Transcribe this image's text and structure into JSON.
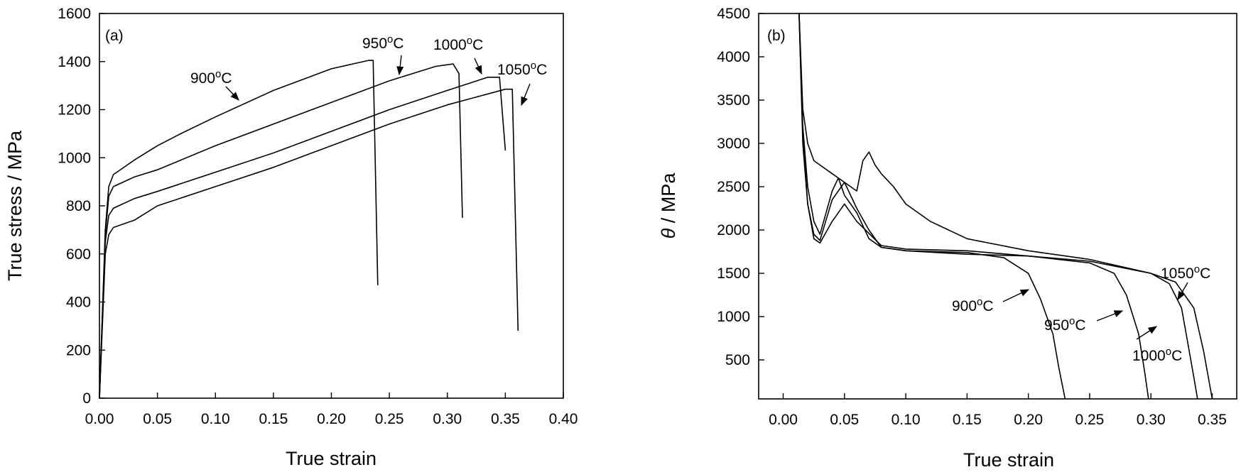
{
  "chart_data": [
    {
      "type": "line",
      "panel_label": "(a)",
      "xlabel": "True strain",
      "ylabel": "True stress / MPa",
      "xlim": [
        0.0,
        0.4
      ],
      "ylim": [
        0,
        1600
      ],
      "xticks": [
        "0.00",
        "0.05",
        "0.10",
        "0.15",
        "0.20",
        "0.25",
        "0.30",
        "0.35",
        "0.40"
      ],
      "yticks": [
        "0",
        "200",
        "400",
        "600",
        "800",
        "1000",
        "1200",
        "1400",
        "1600"
      ],
      "grid": false,
      "series": [
        {
          "name": "900°C",
          "x": [
            0.0,
            0.005,
            0.008,
            0.012,
            0.03,
            0.05,
            0.07,
            0.1,
            0.15,
            0.2,
            0.232,
            0.236,
            0.24
          ],
          "y": [
            0,
            700,
            880,
            930,
            990,
            1050,
            1100,
            1170,
            1280,
            1370,
            1405,
            1405,
            470
          ]
        },
        {
          "name": "950°C",
          "x": [
            0.0,
            0.005,
            0.008,
            0.012,
            0.03,
            0.05,
            0.1,
            0.15,
            0.2,
            0.25,
            0.29,
            0.305,
            0.31,
            0.313
          ],
          "y": [
            0,
            680,
            840,
            880,
            920,
            950,
            1050,
            1140,
            1230,
            1320,
            1380,
            1390,
            1350,
            750
          ]
        },
        {
          "name": "1000°C",
          "x": [
            0.0,
            0.005,
            0.008,
            0.012,
            0.03,
            0.05,
            0.1,
            0.15,
            0.2,
            0.25,
            0.3,
            0.335,
            0.345,
            0.35
          ],
          "y": [
            0,
            650,
            760,
            790,
            830,
            860,
            940,
            1020,
            1110,
            1200,
            1280,
            1335,
            1335,
            1030
          ]
        },
        {
          "name": "1050°C",
          "x": [
            0.0,
            0.005,
            0.008,
            0.012,
            0.03,
            0.05,
            0.1,
            0.15,
            0.2,
            0.25,
            0.3,
            0.35,
            0.356,
            0.361
          ],
          "y": [
            0,
            600,
            680,
            710,
            740,
            800,
            880,
            960,
            1050,
            1140,
            1220,
            1285,
            1285,
            280
          ]
        }
      ],
      "annotations": [
        {
          "text": "900",
          "unit": "°C"
        },
        {
          "text": "950",
          "unit": "°C"
        },
        {
          "text": "1000",
          "unit": "°C"
        },
        {
          "text": "1050",
          "unit": "°C"
        }
      ]
    },
    {
      "type": "line",
      "panel_label": "(b)",
      "xlabel": "True strain",
      "ylabel_symbol": "θ",
      "ylabel": "/ MPa",
      "xlim": [
        -0.02,
        0.37
      ],
      "ylim": [
        50,
        4500
      ],
      "xticks": [
        "0.00",
        "0.05",
        "0.10",
        "0.15",
        "0.20",
        "0.25",
        "0.30",
        "0.35"
      ],
      "yticks": [
        "500",
        "1000",
        "1500",
        "2000",
        "2500",
        "3000",
        "3500",
        "4000",
        "4500"
      ],
      "grid": false,
      "series": [
        {
          "name": "900°C",
          "x": [
            0.013,
            0.016,
            0.02,
            0.025,
            0.03,
            0.035,
            0.04,
            0.045,
            0.05,
            0.06,
            0.07,
            0.08,
            0.1,
            0.15,
            0.18,
            0.2,
            0.21,
            0.22,
            0.225,
            0.23
          ],
          "y": [
            4500,
            3200,
            2500,
            2100,
            1950,
            2200,
            2450,
            2600,
            2400,
            2200,
            1900,
            1800,
            1760,
            1740,
            1680,
            1500,
            1200,
            800,
            400,
            50
          ]
        },
        {
          "name": "950°C",
          "x": [
            0.013,
            0.016,
            0.02,
            0.025,
            0.03,
            0.04,
            0.05,
            0.06,
            0.07,
            0.08,
            0.1,
            0.15,
            0.2,
            0.25,
            0.27,
            0.28,
            0.29,
            0.295,
            0.298
          ],
          "y": [
            4500,
            3000,
            2300,
            1950,
            1880,
            2350,
            2550,
            2250,
            2000,
            1800,
            1760,
            1720,
            1700,
            1620,
            1500,
            1250,
            800,
            350,
            50
          ]
        },
        {
          "name": "1000°C",
          "x": [
            0.013,
            0.016,
            0.02,
            0.025,
            0.03,
            0.04,
            0.05,
            0.06,
            0.08,
            0.1,
            0.15,
            0.2,
            0.25,
            0.3,
            0.315,
            0.325,
            0.33,
            0.335,
            0.338
          ],
          "y": [
            4500,
            3100,
            2300,
            1900,
            1850,
            2100,
            2300,
            2100,
            1820,
            1780,
            1760,
            1700,
            1640,
            1500,
            1380,
            1100,
            700,
            300,
            50
          ]
        },
        {
          "name": "1050°C",
          "x": [
            0.013,
            0.016,
            0.02,
            0.025,
            0.03,
            0.04,
            0.05,
            0.06,
            0.065,
            0.07,
            0.075,
            0.08,
            0.09,
            0.1,
            0.12,
            0.15,
            0.2,
            0.25,
            0.3,
            0.32,
            0.335,
            0.343,
            0.35
          ],
          "y": [
            4500,
            3400,
            3000,
            2800,
            2750,
            2650,
            2550,
            2450,
            2800,
            2900,
            2750,
            2650,
            2500,
            2300,
            2100,
            1900,
            1760,
            1660,
            1500,
            1400,
            1100,
            600,
            50
          ]
        }
      ],
      "annotations": [
        {
          "text": "900",
          "unit": "°C"
        },
        {
          "text": "950",
          "unit": "°C"
        },
        {
          "text": "1000",
          "unit": "°C"
        },
        {
          "text": "1050",
          "unit": "°C"
        }
      ]
    }
  ]
}
